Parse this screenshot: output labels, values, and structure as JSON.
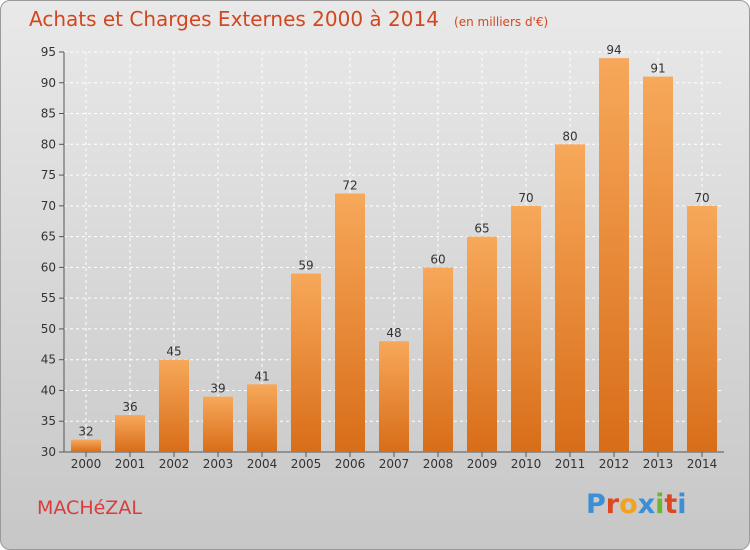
{
  "header": {
    "title": "Achats et Charges Externes 2000 à 2014",
    "unit": "(en milliers d'€)"
  },
  "footer": {
    "place": "MACHéZAL",
    "logo": "Proxiti"
  },
  "colors": {
    "bar_top": "#f7a85a",
    "bar_bottom": "#d86d18",
    "title": "#d2471f",
    "logo": [
      "#3a8fd6",
      "#e0461f",
      "#f1a21f",
      "#3a8fd6",
      "#6fb431",
      "#e0461f",
      "#3a8fd6"
    ]
  },
  "chart_data": {
    "type": "bar",
    "title": "Achats et Charges Externes 2000 à 2014",
    "subtitle": "(en milliers d'€)",
    "categories": [
      "2000",
      "2001",
      "2002",
      "2003",
      "2004",
      "2005",
      "2006",
      "2007",
      "2008",
      "2009",
      "2010",
      "2011",
      "2012",
      "2013",
      "2014"
    ],
    "values": [
      32,
      36,
      45,
      39,
      41,
      59,
      72,
      48,
      60,
      65,
      70,
      80,
      94,
      91,
      70
    ],
    "ylim": [
      30,
      95
    ],
    "yticks": [
      30,
      35,
      40,
      45,
      50,
      55,
      60,
      65,
      70,
      75,
      80,
      85,
      90,
      95
    ],
    "grid": true,
    "xlabel": "",
    "ylabel": ""
  }
}
